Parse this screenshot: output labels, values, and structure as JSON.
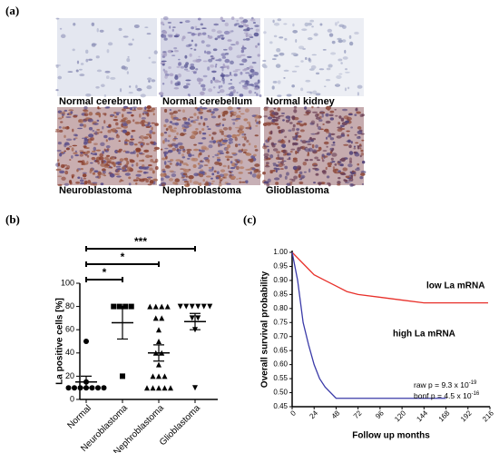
{
  "panels": {
    "a": {
      "label": "(a)",
      "images": [
        {
          "label": "Normal cerebrum"
        },
        {
          "label": "Normal cerebellum"
        },
        {
          "label": "Normal kidney"
        },
        {
          "label": "Neuroblastoma"
        },
        {
          "label": "Nephroblastoma"
        },
        {
          "label": "Glioblastoma"
        }
      ]
    }
  },
  "chart_data": [
    {
      "type": "dot",
      "panel": "(b)",
      "ylabel": "La positive cells [%]",
      "categories": [
        "Normal",
        "Neuroblastoma",
        "Nephroblastoma",
        "Glioblastoma"
      ],
      "points": [
        [
          10,
          10,
          10,
          10,
          10,
          10,
          10,
          15,
          50
        ],
        [
          80,
          80,
          80,
          80,
          20
        ],
        [
          80,
          80,
          80,
          80,
          70,
          70,
          60,
          50,
          40,
          40,
          30,
          20,
          20,
          20,
          10,
          10,
          10,
          10,
          10
        ],
        [
          80,
          80,
          80,
          80,
          80,
          80,
          70,
          70,
          60,
          10
        ]
      ],
      "means": [
        15,
        66,
        40,
        67
      ],
      "sems": [
        5,
        14,
        7,
        7
      ],
      "markers": [
        "circle",
        "square",
        "triangle",
        "triangle-down"
      ],
      "color": "#000000",
      "ylim": [
        0,
        100
      ],
      "yticks": [
        0,
        20,
        40,
        60,
        80,
        100
      ],
      "comparisons": [
        {
          "pair": [
            "Normal",
            "Neuroblastoma"
          ],
          "label": "*"
        },
        {
          "pair": [
            "Normal",
            "Nephroblastoma"
          ],
          "label": "*"
        },
        {
          "pair": [
            "Normal",
            "Glioblastoma"
          ],
          "label": "***"
        }
      ]
    },
    {
      "type": "survival",
      "panel": "(c)",
      "ylabel": "Overall survival probability",
      "xlabel": "Follow up months",
      "series": [
        {
          "name": "low La mRNA",
          "color": "#e8302a",
          "x": [
            0,
            6,
            12,
            24,
            36,
            48,
            60,
            72,
            96,
            120,
            144,
            168,
            214
          ],
          "values": [
            1.0,
            0.98,
            0.96,
            0.92,
            0.9,
            0.88,
            0.86,
            0.85,
            0.84,
            0.83,
            0.82,
            0.82,
            0.82
          ]
        },
        {
          "name": "high La mRNA",
          "color": "#3a3aa8",
          "x": [
            0,
            6,
            12,
            18,
            24,
            30,
            36,
            48,
            60,
            168
          ],
          "values": [
            1.0,
            0.9,
            0.75,
            0.67,
            0.6,
            0.55,
            0.52,
            0.48,
            0.48,
            0.48
          ]
        }
      ],
      "xlim": [
        0,
        216
      ],
      "xticks": [
        0,
        24,
        48,
        72,
        96,
        120,
        144,
        168,
        192,
        216
      ],
      "ylim": [
        0.45,
        1.0
      ],
      "yticks": [
        0.45,
        {
          "value": 0.5,
          "label": "0.50"
        },
        0.55,
        {
          "value": 0.6,
          "label": "0.60"
        },
        0.65,
        {
          "value": 0.7,
          "label": "0.70"
        },
        0.75,
        {
          "value": 0.8,
          "label": "0.80"
        },
        0.85,
        {
          "value": 0.9,
          "label": "0.90"
        },
        0.95,
        {
          "value": 1.0,
          "label": "1.00"
        }
      ],
      "annotations": [
        {
          "text": "raw p = 9.3 x 10",
          "sup": "-19"
        },
        {
          "text": "bonf p = 4.5 x 10",
          "sup": "-16"
        }
      ]
    }
  ]
}
